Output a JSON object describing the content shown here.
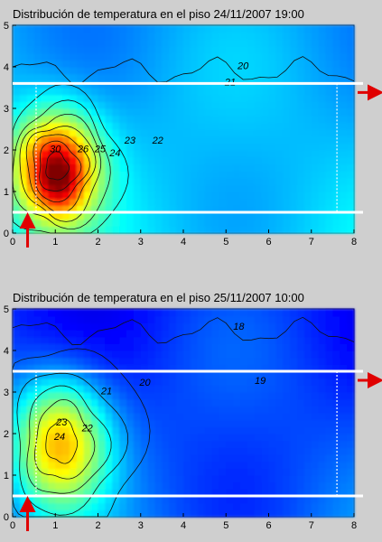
{
  "chart_data": [
    {
      "type": "heatmap",
      "title": "Distribución de temperatura en el piso 24/11/2007 19:00",
      "xlim": [
        0,
        8
      ],
      "ylim": [
        0,
        5
      ],
      "x_ticks": [
        "0",
        "1",
        "2",
        "3",
        "4",
        "5",
        "6",
        "7",
        "8"
      ],
      "y_ticks": [
        "0",
        "1",
        "2",
        "3",
        "4",
        "5"
      ],
      "colormap": "jet",
      "background_level": 21,
      "hotspots": [
        {
          "x": 1.0,
          "y": 1.6,
          "peak": 28.5,
          "sx": 0.7,
          "sy": 0.9
        },
        {
          "x": 1.1,
          "y": 1.2,
          "peak": 2.0,
          "sx": 0.35,
          "sy": 0.5
        }
      ],
      "contour_labels": [
        {
          "text": "20",
          "x": 5.4,
          "y": 3.95
        },
        {
          "text": "21",
          "x": 5.1,
          "y": 3.55
        },
        {
          "text": "22",
          "x": 3.4,
          "y": 2.15
        },
        {
          "text": "23",
          "x": 2.75,
          "y": 2.15
        },
        {
          "text": "24",
          "x": 2.4,
          "y": 1.85
        },
        {
          "text": "25",
          "x": 2.05,
          "y": 1.95
        },
        {
          "text": "26",
          "x": 1.65,
          "y": 1.95
        },
        {
          "text": "30",
          "x": 1.0,
          "y": 1.95
        }
      ],
      "marker_lines_y": [
        3.6,
        0.5
      ]
    },
    {
      "type": "heatmap",
      "title": "Distribución de temperatura en el piso 25/11/2007 10:00",
      "xlim": [
        0,
        8
      ],
      "ylim": [
        0,
        5
      ],
      "x_ticks": [
        "0",
        "1",
        "2",
        "3",
        "4",
        "5",
        "6",
        "7",
        "8"
      ],
      "y_ticks": [
        "0",
        "1",
        "2",
        "3",
        "4",
        "5"
      ],
      "colormap": "jet",
      "background_level": 18.5,
      "hotspots": [
        {
          "x": 1.1,
          "y": 1.8,
          "peak": 23.5,
          "sx": 0.8,
          "sy": 1.1
        }
      ],
      "contour_labels": [
        {
          "text": "18",
          "x": 5.3,
          "y": 4.5
        },
        {
          "text": "19",
          "x": 5.8,
          "y": 3.2
        },
        {
          "text": "20",
          "x": 3.1,
          "y": 3.15
        },
        {
          "text": "21",
          "x": 2.2,
          "y": 2.95
        },
        {
          "text": "22",
          "x": 1.75,
          "y": 2.05
        },
        {
          "text": "23",
          "x": 1.15,
          "y": 2.2
        },
        {
          "text": "24",
          "x": 1.1,
          "y": 1.85
        }
      ],
      "marker_lines_y": [
        3.5,
        0.5
      ]
    }
  ]
}
